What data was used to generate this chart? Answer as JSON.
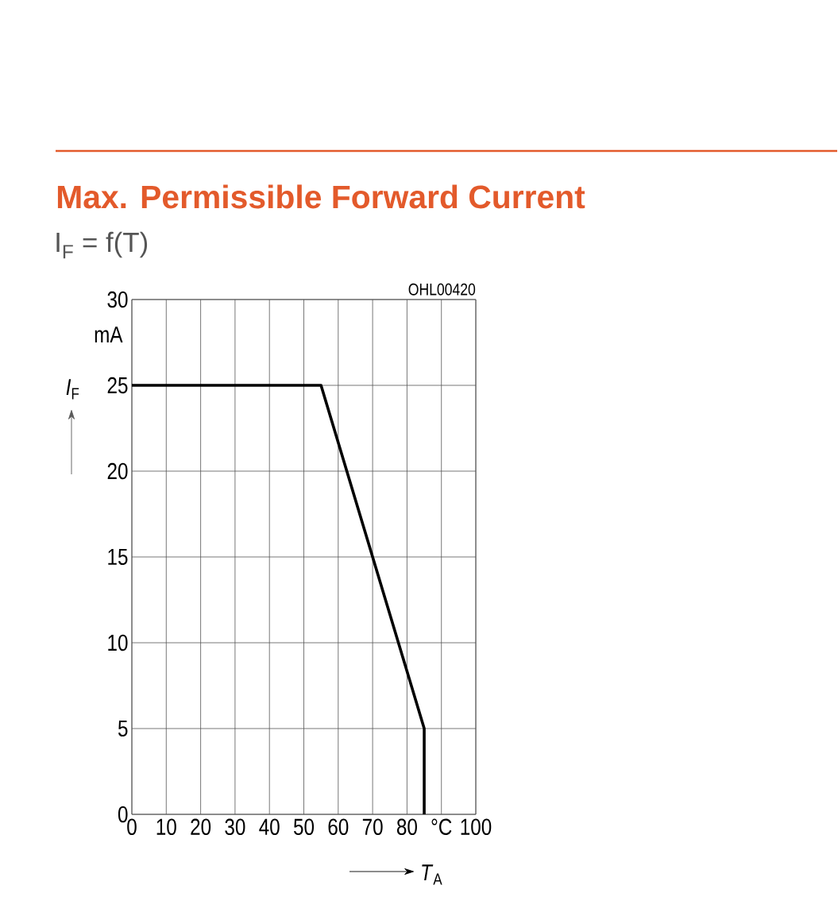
{
  "chart_data": {
    "type": "line",
    "title": "Max. Permissible Forward Current",
    "subtitle": "I$_{F}$ = f(T)",
    "xlabel": "*T*$_{A}$",
    "ylabel": "*I*$_{F}$",
    "annotations": [
      "mA",
      "OHL00420"
    ],
    "series": [
      {
        "color": "#000000",
        "x": [
          0,
          55,
          85,
          85
        ],
        "values": [
          25,
          25,
          5,
          0
        ]
      }
    ],
    "xlim": [
      0,
      100
    ],
    "xticks": [
      0,
      10,
      20,
      30,
      40,
      50,
      60,
      70,
      80,
      {
        "value": 90,
        "label": "°C"
      },
      100
    ],
    "ylim": [
      0,
      30
    ],
    "yticks": [
      0,
      5,
      10,
      15,
      20,
      25,
      30
    ],
    "grid": true,
    "line_style": "solid"
  }
}
